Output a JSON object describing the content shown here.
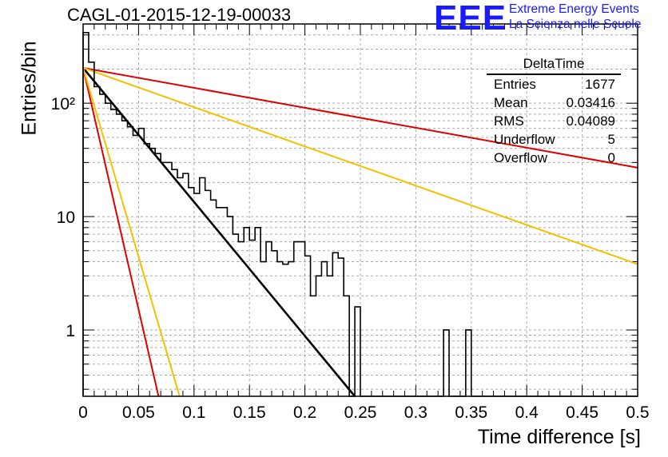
{
  "title": "CAGL-01-2015-12-19-00033",
  "logo": {
    "mark": "EEE",
    "line1": "Extreme Energy Events",
    "line2": "La Scienza nelle Scuole"
  },
  "stats": {
    "name": "DeltaTime",
    "rows": [
      {
        "label": "Entries",
        "value": "1677"
      },
      {
        "label": "Mean",
        "value": "0.03416"
      },
      {
        "label": "RMS",
        "value": "0.04089"
      },
      {
        "label": "Underflow",
        "value": "5"
      },
      {
        "label": "Overflow",
        "value": "0"
      }
    ]
  },
  "chart_data": {
    "type": "line",
    "title": "CAGL-01-2015-12-19-00033",
    "xlabel": "Time difference [s]",
    "ylabel": "Entries/bin",
    "xlim": [
      0,
      0.5
    ],
    "ylim": [
      0.26,
      500
    ],
    "y_scale": "log",
    "grid": true,
    "x_ticks": [
      0,
      0.05,
      0.1,
      0.15,
      0.2,
      0.25,
      0.3,
      0.35,
      0.4,
      0.45,
      0.5
    ],
    "x_tick_labels": [
      "0",
      "0.05",
      "0.1",
      "0.15",
      "0.2",
      "0.25",
      "0.3",
      "0.35",
      "0.4",
      "0.45",
      "0.5"
    ],
    "y_tick_values": [
      1,
      10,
      100
    ],
    "y_tick_labels": [
      "1",
      "10",
      "10²"
    ],
    "histogram": {
      "bin_width": 0.005,
      "x_start": 0,
      "counts": [
        420,
        230,
        140,
        120,
        100,
        88,
        80,
        70,
        62,
        52,
        60,
        44,
        40,
        36,
        30,
        30,
        26,
        22,
        24,
        18,
        16,
        22,
        17,
        14,
        12,
        12,
        10,
        7,
        6,
        8,
        6.2,
        8,
        4,
        6,
        5,
        4,
        3.8,
        4,
        6,
        6,
        4.5,
        2,
        3,
        4,
        3,
        4.8,
        4.3,
        2,
        0,
        1.6,
        0,
        0,
        0,
        0,
        0,
        0,
        0,
        0,
        0,
        0,
        0,
        0,
        0,
        0,
        0,
        1,
        0,
        0,
        0,
        1,
        0,
        0,
        0,
        0,
        0,
        0,
        0,
        0,
        0,
        0,
        0,
        0,
        0,
        0,
        0,
        0,
        0,
        0,
        0,
        0,
        0,
        0,
        0,
        0,
        0,
        0,
        0,
        0,
        0,
        0
      ]
    },
    "series": [
      {
        "color": "#000000",
        "x": [
          0,
          0.245
        ],
        "y": [
          205,
          0.26
        ]
      },
      {
        "color": "#dd0000",
        "x": [
          0,
          0.5
        ],
        "y": [
          205,
          27
        ]
      },
      {
        "color": "#f5c000",
        "x": [
          0,
          0.5
        ],
        "y": [
          205,
          3.8
        ]
      },
      {
        "color": "#dd0000",
        "x": [
          0,
          0.068
        ],
        "y": [
          205,
          0.26
        ]
      },
      {
        "color": "#f5c000",
        "x": [
          0,
          0.087
        ],
        "y": [
          205,
          0.26
        ]
      }
    ]
  }
}
